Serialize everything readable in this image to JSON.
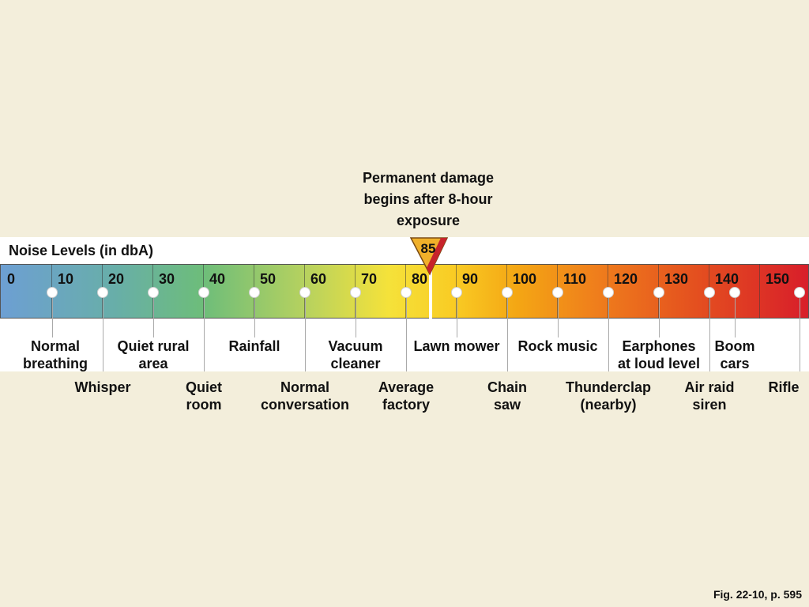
{
  "damage_note": {
    "line1": "Permanent damage",
    "line2": "begins after 8-hour",
    "line3": "exposure"
  },
  "scale_title": "Noise Levels (in dbA)",
  "damage_threshold": 85,
  "ticks": [
    "0",
    "10",
    "20",
    "30",
    "40",
    "50",
    "60",
    "70",
    "80",
    "90",
    "100",
    "110",
    "120",
    "130",
    "140",
    "150"
  ],
  "sources_upper": [
    {
      "line1": "Normal",
      "line2": "breathing",
      "level": 10
    },
    {
      "line1": "Quiet rural",
      "line2": "area",
      "level": 30
    },
    {
      "line1": "Rainfall",
      "line2": "",
      "level": 50
    },
    {
      "line1": "Vacuum",
      "line2": "cleaner",
      "level": 70
    },
    {
      "line1": "Lawn mower",
      "line2": "",
      "level": 90
    },
    {
      "line1": "Rock music",
      "line2": "",
      "level": 110
    },
    {
      "line1": "Earphones",
      "line2": "at loud level",
      "level": 130
    },
    {
      "line1": "Boom",
      "line2": "cars",
      "level": 145
    }
  ],
  "sources_lower": [
    {
      "line1": "Whisper",
      "line2": "",
      "level": 20
    },
    {
      "line1": "Quiet",
      "line2": "room",
      "level": 40
    },
    {
      "line1": "Normal",
      "line2": "conversation",
      "level": 60
    },
    {
      "line1": "Average",
      "line2": "factory",
      "level": 80
    },
    {
      "line1": "Chain",
      "line2": "saw",
      "level": 100
    },
    {
      "line1": "Thunderclap",
      "line2": "(nearby)",
      "level": 120
    },
    {
      "line1": "Air raid",
      "line2": "siren",
      "level": 140
    },
    {
      "line1": "Rifle",
      "line2": "",
      "level": 160
    }
  ],
  "fig_caption": "Fig. 22-10, p. 595"
}
